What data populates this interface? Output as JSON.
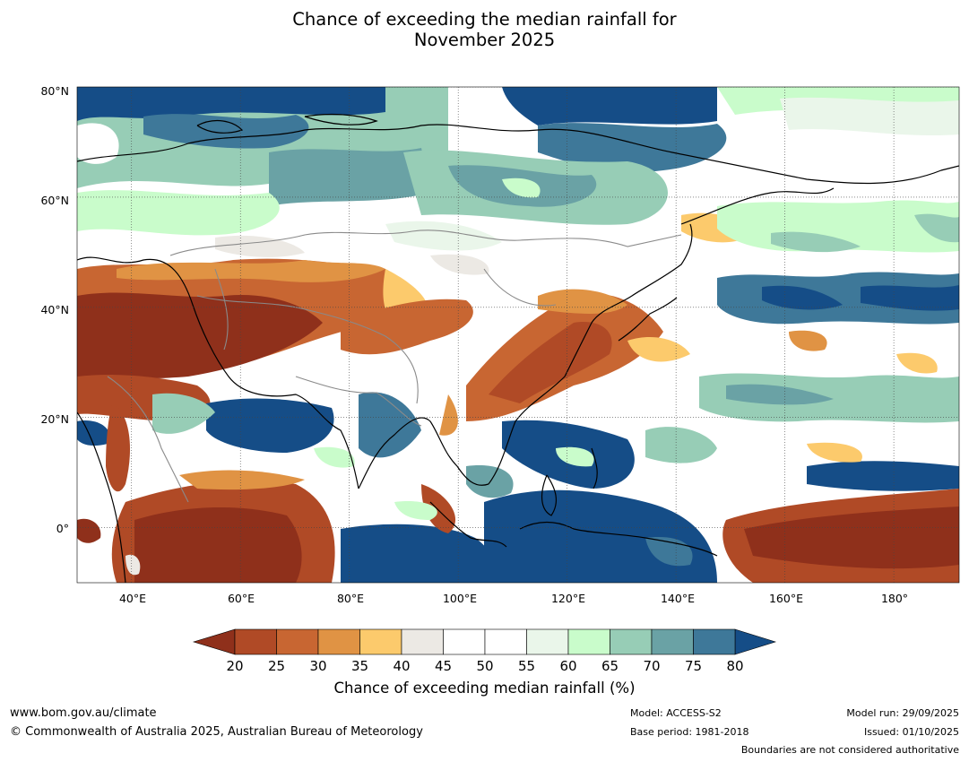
{
  "title": {
    "line1": "Chance of exceeding the median rainfall for",
    "line2": "November 2025"
  },
  "map": {
    "lat_labels": [
      "80°N",
      "60°N",
      "40°N",
      "20°N",
      "0°"
    ],
    "lon_labels": [
      "40°E",
      "60°E",
      "80°E",
      "100°E",
      "120°E",
      "140°E",
      "160°E",
      "180°"
    ],
    "extent": {
      "lon": [
        30,
        192
      ],
      "lat": [
        -10,
        80
      ]
    }
  },
  "colorbar": {
    "ticks": [
      "20",
      "25",
      "30",
      "35",
      "40",
      "45",
      "50",
      "55",
      "60",
      "65",
      "70",
      "75",
      "80"
    ],
    "colors": [
      "#8f301b",
      "#b04a26",
      "#c86632",
      "#e09344",
      "#fcca6c",
      "#ece9e4",
      "#ffffff",
      "#ffffff",
      "#eaf6ea",
      "#c9fccb",
      "#97cdb6",
      "#6aa2a5",
      "#3e7899",
      "#154d87"
    ],
    "label": "Chance of exceeding median rainfall (%)"
  },
  "footer": {
    "website": "www.bom.gov.au/climate",
    "copyright": "© Commonwealth of Australia 2025, Australian Bureau of Meteorology",
    "model": "Model: ACCESS-S2",
    "base_period": "Base period: 1981-2018",
    "model_run": "Model run: 29/09/2025",
    "issued": "Issued: 01/10/2025",
    "disclaimer": "Boundaries are not considered authoritative"
  }
}
